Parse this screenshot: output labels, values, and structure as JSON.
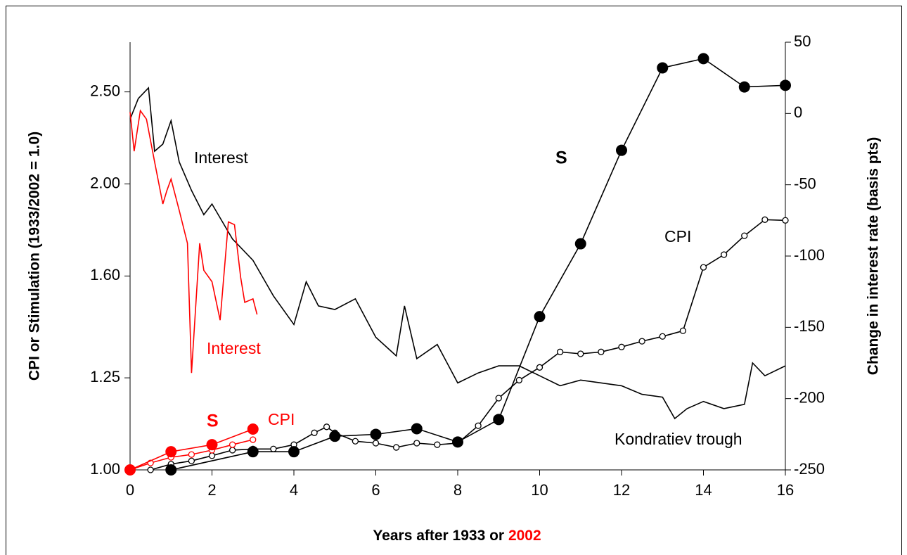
{
  "chart_data": {
    "type": "line",
    "xlabel": [
      "Years after 1933 or",
      "2002"
    ],
    "ylabel": "CPI or Stimulation (1933/2002 = 1.0)",
    "y2label": "Change in interest rate (basis pts)",
    "xlim": [
      0,
      16
    ],
    "xticks": [
      0,
      2,
      4,
      6,
      8,
      10,
      12,
      14,
      16
    ],
    "ylim": [
      1,
      2.82
    ],
    "ylog": true,
    "yticks": [
      {
        "value": 1,
        "label": "1.00"
      },
      1.25,
      {
        "value": 1.6,
        "label": "1.60"
      },
      {
        "value": 2,
        "label": "2.00"
      },
      {
        "value": 2.5,
        "label": "2.50"
      }
    ],
    "y2lim": [
      -250,
      50
    ],
    "y2ticks": [
      50,
      0,
      -50,
      -100,
      -150,
      -200,
      -250
    ],
    "annotations": [
      {
        "text": "Interest",
        "color": "#000000"
      },
      {
        "text": "S",
        "color": "#000000"
      },
      {
        "text": "CPI",
        "color": "#000000"
      },
      {
        "text": "Kondratiev trough",
        "color": "#000000"
      },
      {
        "text": "Interest",
        "color": "#ff0000"
      },
      {
        "text": "S",
        "color": "#ff0000"
      },
      {
        "text": "CPI",
        "color": "#ff0000"
      }
    ],
    "series": [
      {
        "color": "#000000",
        "axis": "y2",
        "marker": "none",
        "x": [
          0,
          0.2,
          0.45,
          0.6,
          0.8,
          1,
          1.2,
          1.5,
          1.8,
          2,
          2.5,
          3,
          3.5,
          4,
          4.3,
          4.6,
          5,
          5.5,
          6,
          6.5,
          6.7,
          7,
          7.5,
          8,
          8.5,
          9,
          9.5,
          10,
          10.5,
          11,
          12,
          12.5,
          13,
          13.3,
          13.6,
          14,
          14.5,
          15,
          15.2,
          15.5,
          16
        ],
        "values": [
          -4,
          10.5,
          18,
          -26.5,
          -21.5,
          -5,
          -34,
          -54,
          -71,
          -63.5,
          -88,
          -103,
          -128,
          -148,
          -118,
          -135,
          -137.5,
          -130,
          -157,
          -170,
          -135,
          -172,
          -162,
          -189,
          -182,
          -177,
          -177,
          -184,
          -191,
          -187,
          -191,
          -197,
          -199,
          -214,
          -207,
          -202,
          -207,
          -204,
          -175,
          -184,
          -177
        ]
      },
      {
        "color": "#000000",
        "marker": "open",
        "x": [
          0.5,
          1,
          1.5,
          2,
          2.5,
          3,
          3.5,
          4,
          4.5,
          4.8,
          5,
          5.5,
          6,
          6.5,
          7,
          7.5,
          8,
          8.5,
          9,
          9.5,
          10,
          10.5,
          11,
          11.5,
          12,
          12.5,
          13,
          13.5,
          14,
          14.5,
          15,
          15.5,
          16
        ],
        "values": [
          1,
          1.014,
          1.022,
          1.035,
          1.049,
          1.052,
          1.052,
          1.063,
          1.094,
          1.11,
          1.094,
          1.072,
          1.067,
          1.056,
          1.067,
          1.063,
          1.067,
          1.113,
          1.19,
          1.243,
          1.282,
          1.331,
          1.325,
          1.331,
          1.347,
          1.366,
          1.382,
          1.401,
          1.634,
          1.685,
          1.764,
          1.834,
          1.831
        ]
      },
      {
        "color": "#000000",
        "marker": "filled",
        "x": [
          1,
          3,
          4,
          5,
          6,
          7,
          8,
          9,
          10,
          11,
          12,
          13,
          14,
          15,
          16
        ],
        "values": [
          1,
          1.045,
          1.045,
          1.085,
          1.09,
          1.105,
          1.07,
          1.13,
          1.45,
          1.73,
          2.17,
          2.65,
          2.71,
          2.53,
          2.54
        ]
      },
      {
        "color": "#ff0000",
        "axis": "y2",
        "marker": "none",
        "x": [
          0,
          0.1,
          0.25,
          0.4,
          0.6,
          0.8,
          0.9,
          1,
          1.2,
          1.4,
          1.5,
          1.7,
          1.8,
          2,
          2.2,
          2.4,
          2.55,
          2.7,
          2.8,
          3,
          3.1
        ],
        "values": [
          1,
          -26.5,
          2,
          -4,
          -34,
          -63.5,
          -54,
          -46,
          -68,
          -91,
          -182,
          -91,
          -110,
          -118,
          -145,
          -76,
          -78,
          -115,
          -132.5,
          -130,
          -141
        ]
      },
      {
        "color": "#ff0000",
        "marker": "open",
        "x": [
          0,
          0.5,
          1,
          1.5,
          2,
          2.5,
          3
        ],
        "values": [
          1,
          1.017,
          1.031,
          1.038,
          1.049,
          1.063,
          1.076
        ]
      },
      {
        "color": "#ff0000",
        "marker": "filled",
        "x": [
          0,
          1,
          2,
          3
        ],
        "values": [
          1,
          1.045,
          1.063,
          1.104
        ]
      }
    ]
  }
}
